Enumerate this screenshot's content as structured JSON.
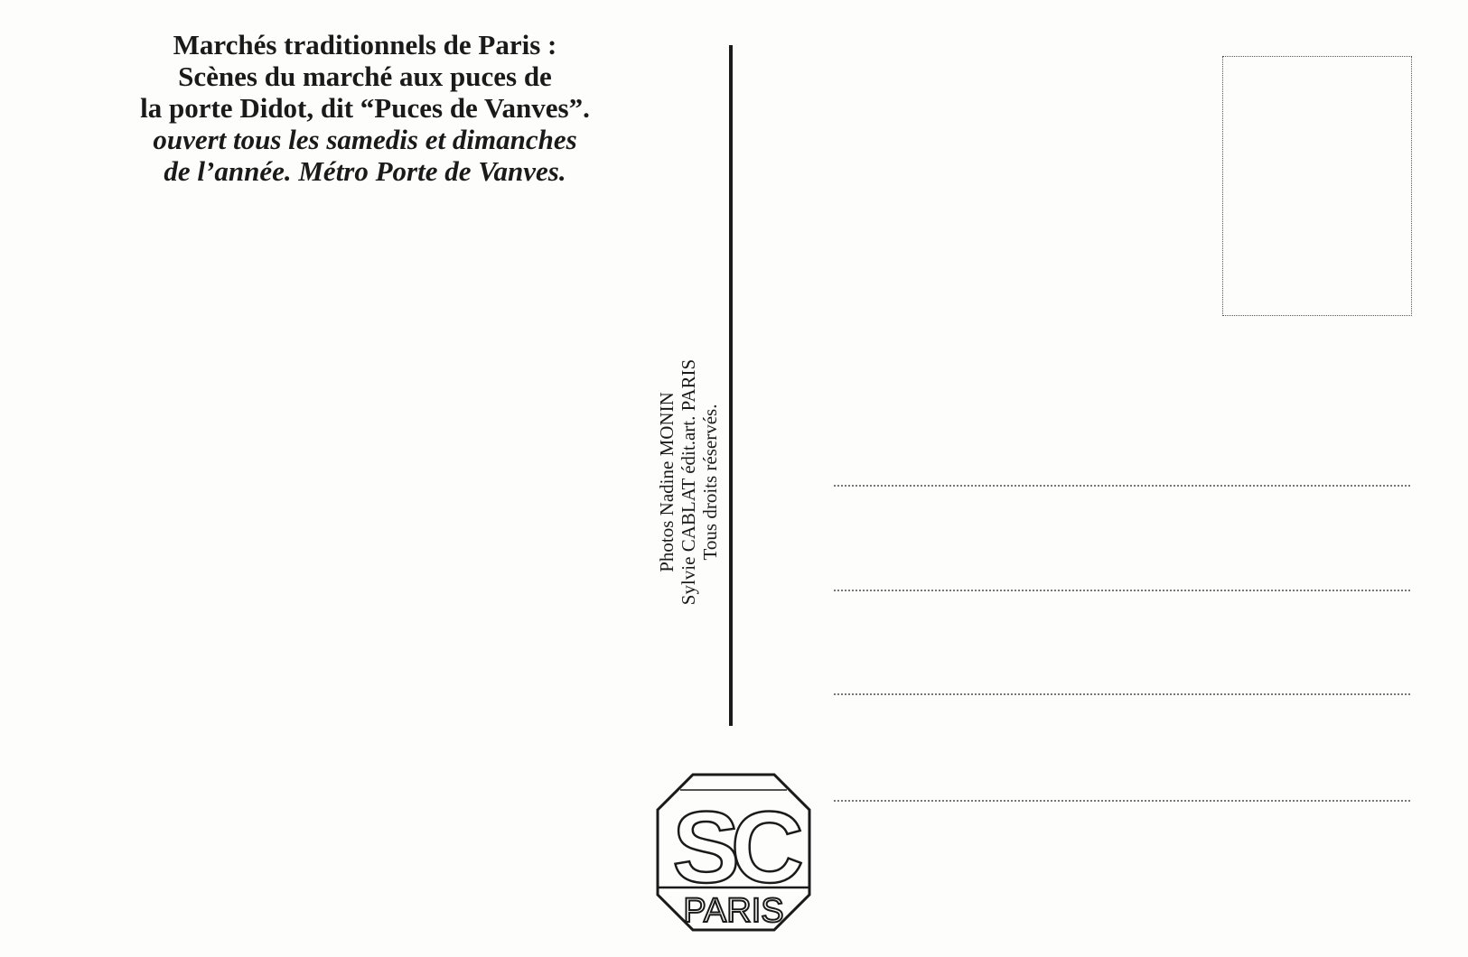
{
  "caption": {
    "lines_bold": [
      "Marchés traditionnels de Paris :",
      "Scènes du marché aux puces de",
      "la porte Didot, dit “Puces de Vanves”."
    ],
    "lines_italic": [
      "ouvert tous les samedis et dimanches",
      "de l’année. Métro Porte de Vanves."
    ]
  },
  "credits": {
    "line1": "Photos Nadine MONIN",
    "line2": "Sylvie CABLAT édit.art. PARIS",
    "line3": "Tous droits réservés."
  },
  "logo": {
    "monogram": "SC",
    "city": "PARIS"
  },
  "address_lines": 4,
  "colors": {
    "ink": "#1a1a1a",
    "paper": "#fdfdfb"
  }
}
